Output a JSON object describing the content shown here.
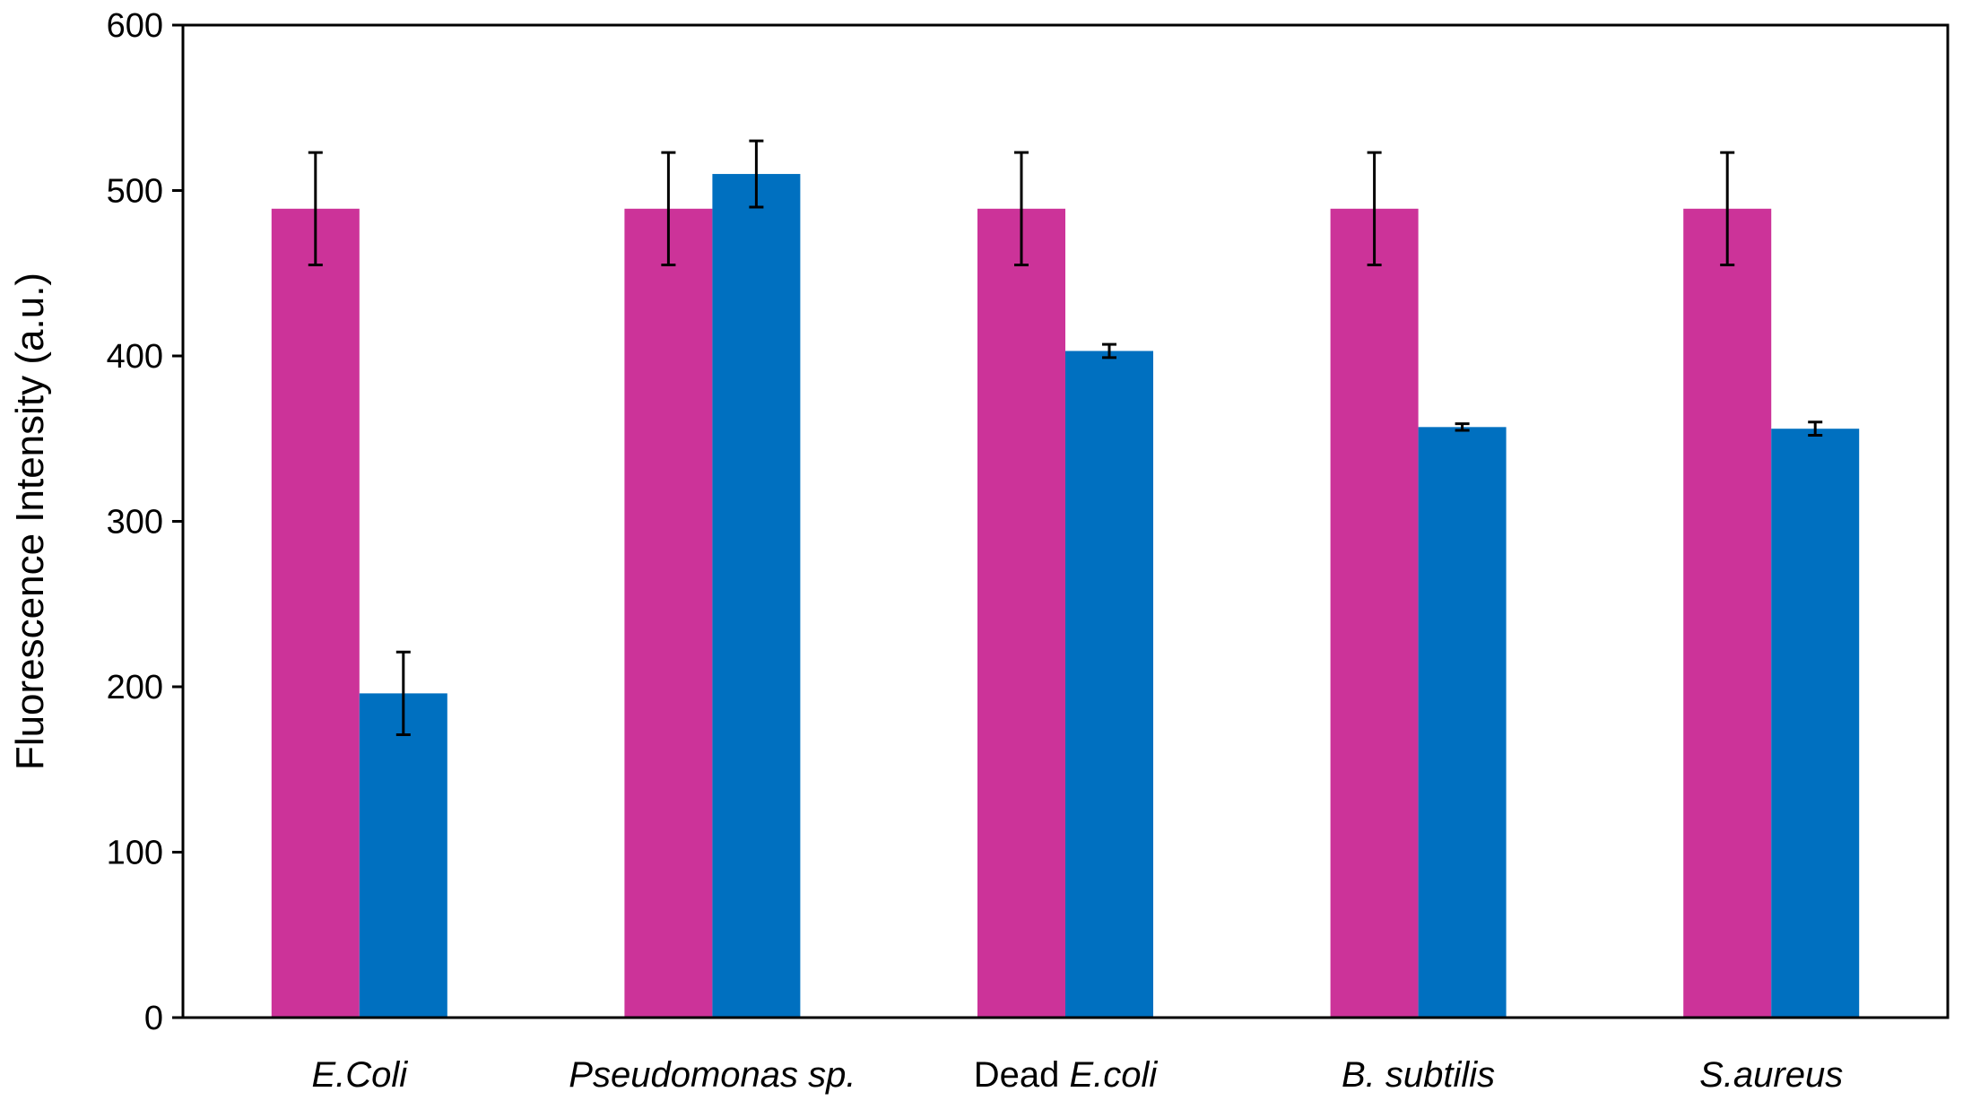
{
  "chart_data": {
    "type": "bar",
    "title": "",
    "xlabel": "",
    "ylabel": "Fluorescence Intensity (a.u.)",
    "ylim": [
      0,
      600
    ],
    "yticks": [
      0,
      100,
      200,
      300,
      400,
      500,
      600
    ],
    "grid": false,
    "legend": "none",
    "categories": [
      {
        "parts": [
          {
            "text": "E.Coli",
            "italic": true
          }
        ]
      },
      {
        "parts": [
          {
            "text": "Pseudomonas",
            "italic": true
          },
          {
            "text": " sp.",
            "italic": true
          }
        ]
      },
      {
        "parts": [
          {
            "text": "Dead ",
            "italic": false
          },
          {
            "text": "E.coli",
            "italic": true
          }
        ]
      },
      {
        "parts": [
          {
            "text": "B. subtilis",
            "italic": true
          }
        ]
      },
      {
        "parts": [
          {
            "text": "S.aureus",
            "italic": true
          }
        ]
      }
    ],
    "series": [
      {
        "name": "series-1",
        "color": "#CC3399",
        "values": [
          489,
          489,
          489,
          489,
          489
        ],
        "errors": [
          34,
          34,
          34,
          34,
          34
        ]
      },
      {
        "name": "series-2",
        "color": "#0070C0",
        "values": [
          196,
          510,
          403,
          357,
          356
        ],
        "errors": [
          25,
          20,
          4,
          2,
          4
        ]
      }
    ]
  }
}
